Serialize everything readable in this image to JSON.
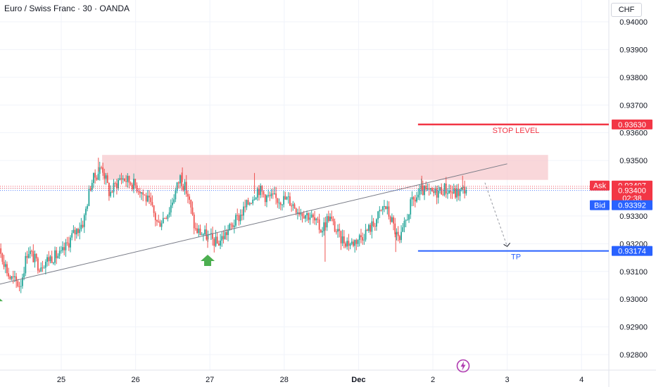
{
  "header": {
    "title": "Euro / Swiss Franc · 30 · OANDA",
    "currency": "CHF"
  },
  "colors": {
    "up": "#26a69a",
    "down": "#ef5350",
    "stop": "#f23645",
    "tp": "#2962ff",
    "zone": "#f7c9ce",
    "trend": "#787b86",
    "arrow": "#9598a1"
  },
  "chart_data": {
    "type": "candlestick",
    "title": "Euro / Swiss Franc · 30 · OANDA",
    "ylim": [
      0.9275,
      0.9405
    ],
    "y_ticks": [
      "0.94000",
      "0.93900",
      "0.93800",
      "0.93700",
      "0.93600",
      "0.93500",
      "0.93400",
      "0.93300",
      "0.93200",
      "0.93100",
      "0.93000",
      "0.92900",
      "0.92800"
    ],
    "x_ticks": [
      {
        "label": "25",
        "t": 1.0
      },
      {
        "label": "26",
        "t": 2.0
      },
      {
        "label": "27",
        "t": 3.0
      },
      {
        "label": "28",
        "t": 4.0
      },
      {
        "label": "Dec",
        "t": 5.0
      },
      {
        "label": "2",
        "t": 6.0
      },
      {
        "label": "3",
        "t": 7.0
      },
      {
        "label": "4",
        "t": 8.0
      }
    ],
    "price_path": [
      [
        0.0,
        0.9315
      ],
      [
        0.15,
        0.932
      ],
      [
        0.3,
        0.9308
      ],
      [
        0.45,
        0.9305
      ],
      [
        0.55,
        0.9318
      ],
      [
        0.7,
        0.9312
      ],
      [
        0.85,
        0.9315
      ],
      [
        1.0,
        0.9316
      ],
      [
        1.15,
        0.9323
      ],
      [
        1.3,
        0.9328
      ],
      [
        1.4,
        0.9342
      ],
      [
        1.55,
        0.9348
      ],
      [
        1.65,
        0.9338
      ],
      [
        1.8,
        0.9344
      ],
      [
        1.95,
        0.9342
      ],
      [
        2.05,
        0.934
      ],
      [
        2.2,
        0.9334
      ],
      [
        2.3,
        0.9327
      ],
      [
        2.45,
        0.9332
      ],
      [
        2.6,
        0.9344
      ],
      [
        2.7,
        0.9338
      ],
      [
        2.8,
        0.9325
      ],
      [
        2.95,
        0.9323
      ],
      [
        3.1,
        0.932
      ],
      [
        3.25,
        0.9325
      ],
      [
        3.4,
        0.933
      ],
      [
        3.55,
        0.9336
      ],
      [
        3.65,
        0.934
      ],
      [
        3.75,
        0.9337
      ],
      [
        3.9,
        0.9336
      ],
      [
        4.05,
        0.9336
      ],
      [
        4.2,
        0.9332
      ],
      [
        4.35,
        0.933
      ],
      [
        4.5,
        0.9325
      ],
      [
        4.6,
        0.933
      ],
      [
        4.75,
        0.9322
      ],
      [
        4.9,
        0.932
      ],
      [
        5.05,
        0.9323
      ],
      [
        5.2,
        0.9327
      ],
      [
        5.35,
        0.9334
      ],
      [
        5.45,
        0.9328
      ],
      [
        5.55,
        0.932
      ],
      [
        5.7,
        0.9334
      ],
      [
        5.85,
        0.9339
      ],
      [
        6.0,
        0.9338
      ],
      [
        6.15,
        0.934
      ],
      [
        6.3,
        0.9338
      ],
      [
        6.45,
        0.934
      ]
    ],
    "lows": [
      {
        "t": 0.12,
        "value": 0.9302
      },
      {
        "t": 2.97,
        "value": 0.93185
      },
      {
        "t": 4.55,
        "value": 0.93135
      },
      {
        "t": 5.5,
        "value": 0.9317
      }
    ],
    "highs": [
      {
        "t": 1.5,
        "value": 0.9351
      },
      {
        "t": 2.63,
        "value": 0.93475
      },
      {
        "t": 3.6,
        "value": 0.93455
      },
      {
        "t": 5.85,
        "value": 0.93445
      },
      {
        "t": 6.4,
        "value": 0.93445
      }
    ],
    "trendline": {
      "t1": -0.6,
      "p1": 0.93005,
      "t2": 7.0,
      "p2": 0.93488
    },
    "resistance_zone": {
      "t1": 1.55,
      "t2": 7.55,
      "p_top": 0.9352,
      "p_bottom": 0.9343
    },
    "stop_level": {
      "value": 0.9363,
      "label": "STOP LEVEL",
      "tag": "0.93630",
      "t1": 5.8
    },
    "take_profit": {
      "value": 0.93174,
      "label": "TP",
      "tag": "0.93174",
      "t1": 5.8
    },
    "projection": {
      "t1": 6.7,
      "p1": 0.9342,
      "t2": 7.0,
      "p2": 0.9319
    },
    "markers": [
      {
        "t": 0.12,
        "value": 0.92995
      },
      {
        "t": 2.97,
        "value": 0.9314
      }
    ],
    "ask": {
      "label": "Ask",
      "value": "0.93407",
      "p": 0.93407
    },
    "last": {
      "value": "0.93400",
      "countdown": "02:38",
      "p": 0.934
    },
    "bid": {
      "label": "Bid",
      "value": "0.93392",
      "p": 0.93392
    }
  }
}
